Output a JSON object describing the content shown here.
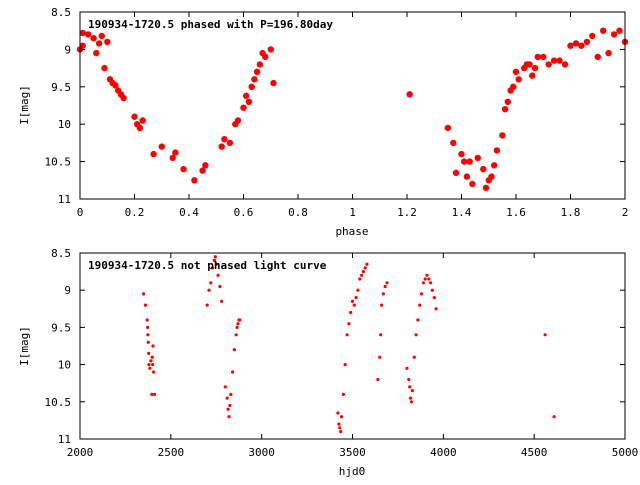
{
  "colors": {
    "points": "#ff0000",
    "axes": "#000000",
    "background": "#ffffff"
  },
  "chart_data": [
    {
      "type": "scatter",
      "title": "190934-1720.5 phased with P=196.80day",
      "xlabel": "phase",
      "ylabel": "I[mag]",
      "xlim": [
        0,
        2
      ],
      "ylim": [
        11,
        8.5
      ],
      "y_inverted": true,
      "grid": false,
      "marker": "filled-circle",
      "xticks": [
        "0",
        "0.2",
        "0.4",
        "0.6",
        "0.8",
        "1",
        "1.2",
        "1.4",
        "1.6",
        "1.8",
        "2"
      ],
      "yticks": [
        "8.5",
        "9",
        "9.5",
        "10",
        "10.5",
        "11"
      ],
      "series": [
        {
          "x": [
            0.0,
            0.01,
            0.01,
            0.03,
            0.05,
            0.06,
            0.07,
            0.08,
            0.09,
            0.1,
            0.11,
            0.12,
            0.13,
            0.14,
            0.15,
            0.16,
            0.2,
            0.21,
            0.22,
            0.23,
            0.27,
            0.3,
            0.34,
            0.35,
            0.38,
            0.42,
            0.45,
            0.46,
            0.52,
            0.53,
            0.55,
            0.57,
            0.58,
            0.6,
            0.61,
            0.62,
            0.63,
            0.64,
            0.65,
            0.66,
            0.67,
            0.68,
            0.7,
            0.71,
            1.21,
            1.35,
            1.37,
            1.38,
            1.4,
            1.41,
            1.42,
            1.43,
            1.44,
            1.46,
            1.48,
            1.49,
            1.5,
            1.51,
            1.52,
            1.53,
            1.55,
            1.56,
            1.57,
            1.58,
            1.59,
            1.6,
            1.61,
            1.63,
            1.64,
            1.65,
            1.66,
            1.67,
            1.68,
            1.7,
            1.72,
            1.74,
            1.76,
            1.78,
            1.8,
            1.82,
            1.84,
            1.86,
            1.88,
            1.9,
            1.92,
            1.94,
            1.96,
            1.98,
            2.0
          ],
          "y": [
            9.0,
            8.95,
            8.78,
            8.8,
            8.85,
            9.05,
            8.92,
            8.82,
            9.25,
            8.9,
            9.4,
            9.45,
            9.48,
            9.55,
            9.6,
            9.65,
            9.9,
            10.0,
            10.05,
            9.95,
            10.4,
            10.3,
            10.45,
            10.38,
            10.6,
            10.75,
            10.62,
            10.55,
            10.3,
            10.2,
            10.25,
            10.0,
            9.95,
            9.78,
            9.62,
            9.7,
            9.5,
            9.4,
            9.3,
            9.2,
            9.05,
            9.1,
            9.0,
            9.45,
            9.6,
            10.05,
            10.25,
            10.65,
            10.4,
            10.5,
            10.7,
            10.5,
            10.8,
            10.45,
            10.6,
            10.85,
            10.75,
            10.7,
            10.55,
            10.35,
            10.15,
            9.8,
            9.7,
            9.55,
            9.5,
            9.3,
            9.4,
            9.25,
            9.2,
            9.2,
            9.35,
            9.25,
            9.1,
            9.1,
            9.2,
            9.15,
            9.15,
            9.2,
            8.95,
            8.92,
            8.95,
            8.9,
            8.82,
            9.1,
            8.75,
            9.05,
            8.8,
            8.75,
            8.9
          ]
        }
      ]
    },
    {
      "type": "scatter",
      "title": "190934-1720.5 not phased light curve",
      "xlabel": "hjd0",
      "ylabel": "I[mag]",
      "xlim": [
        2000,
        5000
      ],
      "ylim": [
        11,
        8.5
      ],
      "y_inverted": true,
      "grid": false,
      "marker": "small-dot",
      "xticks": [
        "2000",
        "2500",
        "3000",
        "3500",
        "4000",
        "4500",
        "5000"
      ],
      "yticks": [
        "8.5",
        "9",
        "9.5",
        "10",
        "10.5",
        "11"
      ],
      "series": [
        {
          "x": [
            2350,
            2360,
            2370,
            2372,
            2374,
            2376,
            2378,
            2380,
            2385,
            2390,
            2395,
            2398,
            2400,
            2402,
            2405,
            2410,
            2700,
            2710,
            2720,
            2730,
            2740,
            2745,
            2750,
            2760,
            2770,
            2780,
            2800,
            2810,
            2815,
            2820,
            2825,
            2830,
            2840,
            2850,
            2860,
            2865,
            2870,
            2875,
            2880,
            3420,
            3425,
            3430,
            3435,
            3440,
            3450,
            3460,
            3470,
            3480,
            3490,
            3500,
            3510,
            3520,
            3530,
            3540,
            3550,
            3560,
            3570,
            3580,
            3640,
            3650,
            3655,
            3660,
            3670,
            3680,
            3690,
            3800,
            3810,
            3815,
            3820,
            3825,
            3830,
            3840,
            3850,
            3860,
            3870,
            3880,
            3890,
            3900,
            3910,
            3920,
            3930,
            3940,
            3950,
            3960,
            4560,
            4610
          ],
          "y": [
            9.05,
            9.2,
            9.4,
            9.5,
            9.6,
            9.7,
            9.85,
            10.0,
            10.05,
            9.95,
            10.4,
            9.9,
            10.0,
            9.75,
            10.1,
            10.4,
            9.2,
            9.0,
            8.9,
            8.7,
            8.6,
            8.55,
            8.65,
            8.8,
            8.95,
            9.15,
            10.3,
            10.45,
            10.6,
            10.7,
            10.55,
            10.4,
            10.1,
            9.8,
            9.6,
            9.5,
            9.45,
            9.4,
            9.4,
            10.65,
            10.8,
            10.85,
            10.9,
            10.7,
            10.4,
            10.0,
            9.6,
            9.45,
            9.3,
            9.15,
            9.2,
            9.1,
            9.0,
            8.85,
            8.8,
            8.75,
            8.7,
            8.65,
            10.2,
            9.9,
            9.6,
            9.2,
            9.05,
            8.95,
            8.9,
            10.05,
            10.2,
            10.3,
            10.45,
            10.5,
            10.35,
            9.9,
            9.6,
            9.4,
            9.2,
            9.05,
            8.9,
            8.85,
            8.8,
            8.85,
            8.9,
            9.0,
            9.1,
            9.25,
            9.6,
            10.7
          ]
        }
      ]
    }
  ]
}
